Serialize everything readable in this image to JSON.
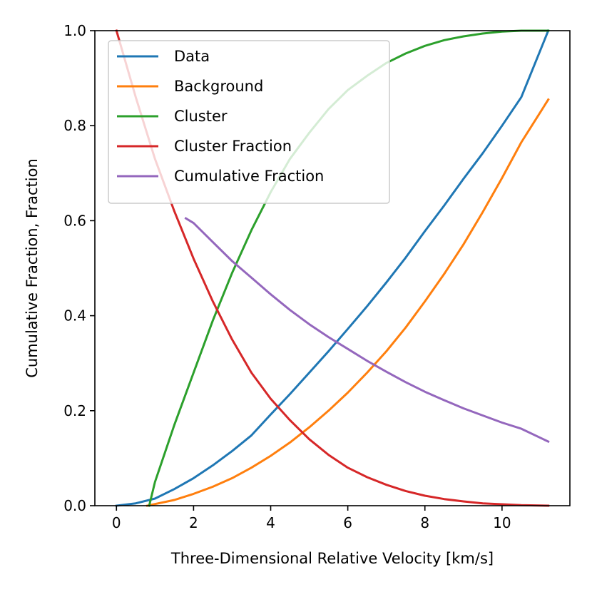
{
  "chart_data": {
    "type": "line",
    "title": "",
    "xlabel": "Three-Dimensional Relative Velocity [km/s]",
    "ylabel": "Cumulative Fraction, Fraction",
    "xlim": [
      -0.56,
      11.76
    ],
    "ylim": [
      0.0,
      1.0
    ],
    "x_ticks": [
      0,
      2,
      4,
      6,
      8,
      10
    ],
    "y_ticks": [
      0.0,
      0.2,
      0.4,
      0.6,
      0.8,
      1.0
    ],
    "x_tick_labels": [
      "0",
      "2",
      "4",
      "6",
      "8",
      "10"
    ],
    "y_tick_labels": [
      "0.0",
      "0.2",
      "0.4",
      "0.6",
      "0.8",
      "1.0"
    ],
    "grid": false,
    "legend_position": "upper-left",
    "series": [
      {
        "name": "Data",
        "color": "#1f77b4",
        "x": [
          0,
          0.5,
          1.0,
          1.5,
          2.0,
          2.5,
          3.0,
          3.5,
          4.0,
          4.5,
          5.0,
          5.5,
          6.0,
          6.5,
          7.0,
          7.5,
          8.0,
          8.5,
          9.0,
          9.5,
          10.0,
          10.5,
          11.2
        ],
        "y": [
          0.0,
          0.005,
          0.015,
          0.035,
          0.058,
          0.085,
          0.115,
          0.148,
          0.192,
          0.235,
          0.28,
          0.325,
          0.372,
          0.42,
          0.47,
          0.522,
          0.578,
          0.632,
          0.688,
          0.742,
          0.8,
          0.86,
          1.0
        ]
      },
      {
        "name": "Background",
        "color": "#ff7f0e",
        "x": [
          0.8,
          1.5,
          2.0,
          2.5,
          3.0,
          3.5,
          4.0,
          4.5,
          5.0,
          5.5,
          6.0,
          6.5,
          7.0,
          7.5,
          8.0,
          8.5,
          9.0,
          9.5,
          10.0,
          10.5,
          11.2
        ],
        "y": [
          0.0,
          0.012,
          0.025,
          0.04,
          0.058,
          0.08,
          0.105,
          0.133,
          0.165,
          0.2,
          0.238,
          0.28,
          0.325,
          0.375,
          0.43,
          0.488,
          0.55,
          0.618,
          0.69,
          0.765,
          0.855
        ]
      },
      {
        "name": "Cluster",
        "color": "#2ca02c",
        "x": [
          0.85,
          1.0,
          1.5,
          2.0,
          2.5,
          3.0,
          3.5,
          4.0,
          4.5,
          5.0,
          5.5,
          6.0,
          6.5,
          7.0,
          7.5,
          8.0,
          8.5,
          9.0,
          9.5,
          10.0,
          10.5,
          11.2
        ],
        "y": [
          0.0,
          0.05,
          0.17,
          0.28,
          0.39,
          0.49,
          0.58,
          0.66,
          0.73,
          0.785,
          0.835,
          0.875,
          0.905,
          0.932,
          0.952,
          0.968,
          0.98,
          0.988,
          0.994,
          0.998,
          1.0,
          1.0
        ]
      },
      {
        "name": "Cluster Fraction",
        "color": "#d62728",
        "x": [
          0,
          0.5,
          1.0,
          1.5,
          2.0,
          2.5,
          3.0,
          3.5,
          4.0,
          4.5,
          5.0,
          5.5,
          6.0,
          6.5,
          7.0,
          7.5,
          8.0,
          8.5,
          9.0,
          9.5,
          10.0,
          10.5,
          11.2
        ],
        "y": [
          1.0,
          0.86,
          0.73,
          0.62,
          0.52,
          0.43,
          0.35,
          0.28,
          0.225,
          0.18,
          0.14,
          0.107,
          0.08,
          0.06,
          0.044,
          0.031,
          0.021,
          0.014,
          0.009,
          0.005,
          0.003,
          0.001,
          0.0
        ]
      },
      {
        "name": "Cumulative Fraction",
        "color": "#9467bd",
        "x": [
          1.8,
          2.0,
          2.5,
          3.0,
          3.5,
          4.0,
          4.5,
          5.0,
          5.5,
          6.0,
          6.5,
          7.0,
          7.5,
          8.0,
          8.5,
          9.0,
          9.5,
          10.0,
          10.5,
          11.2
        ],
        "y": [
          0.605,
          0.595,
          0.555,
          0.515,
          0.48,
          0.445,
          0.412,
          0.382,
          0.355,
          0.33,
          0.305,
          0.282,
          0.26,
          0.24,
          0.222,
          0.205,
          0.19,
          0.175,
          0.162,
          0.135
        ]
      }
    ]
  }
}
